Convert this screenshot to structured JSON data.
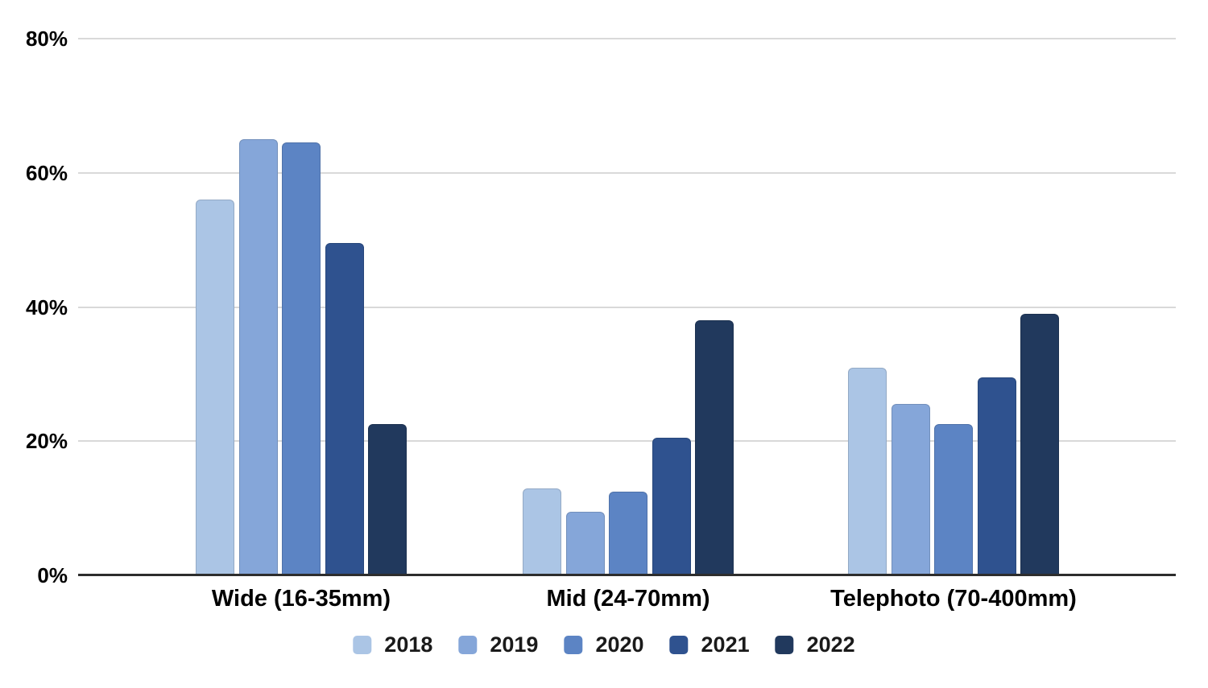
{
  "chart_data": {
    "type": "bar",
    "categories": [
      "Wide (16-35mm)",
      "Mid (24-70mm)",
      "Telephoto (70-400mm)"
    ],
    "series": [
      {
        "name": "2018",
        "color": "#ABC5E5",
        "values": [
          56,
          13,
          31
        ]
      },
      {
        "name": "2019",
        "color": "#85A6D9",
        "values": [
          65,
          9.5,
          25.5
        ]
      },
      {
        "name": "2020",
        "color": "#5C84C4",
        "values": [
          64.5,
          12.5,
          22.5
        ]
      },
      {
        "name": "2021",
        "color": "#2F528F",
        "values": [
          49.5,
          20.5,
          29.5
        ]
      },
      {
        "name": "2022",
        "color": "#21395D",
        "values": [
          22.5,
          38,
          39
        ]
      }
    ],
    "y_axis": {
      "tick_labels": [
        "0%",
        "20%",
        "40%",
        "60%",
        "80%"
      ],
      "tick_values": [
        0,
        20,
        40,
        60,
        80
      ],
      "ylim": [
        0,
        80
      ],
      "grid": true
    },
    "legend": {
      "position": "bottom",
      "entries": [
        "2018",
        "2019",
        "2020",
        "2021",
        "2022"
      ]
    }
  }
}
